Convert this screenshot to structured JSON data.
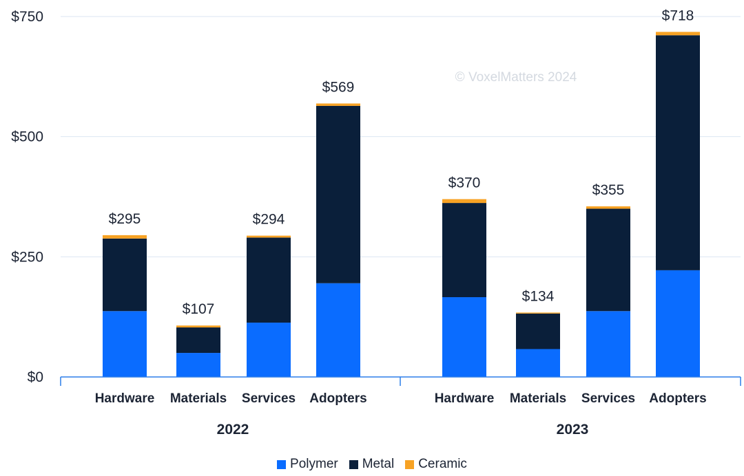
{
  "chart_data": {
    "type": "bar",
    "stacked": true,
    "groups": [
      {
        "label": "2022",
        "categories": [
          "Hardware",
          "Materials",
          "Services",
          "Adopters"
        ],
        "totals": [
          "$295",
          "$107",
          "$294",
          "$569"
        ]
      },
      {
        "label": "2023",
        "categories": [
          "Hardware",
          "Materials",
          "Services",
          "Adopters"
        ],
        "totals": [
          "$370",
          "$134",
          "$355",
          "$718"
        ]
      }
    ],
    "series": [
      {
        "name": "Polymer",
        "color": "#0a6cff",
        "values": [
          [
            137,
            50,
            113,
            195
          ],
          [
            166,
            58,
            137,
            222
          ]
        ]
      },
      {
        "name": "Metal",
        "color": "#0a1f3a",
        "values": [
          [
            151,
            53,
            177,
            369
          ],
          [
            196,
            74,
            213,
            489
          ]
        ]
      },
      {
        "name": "Ceramic",
        "color": "#f7a224",
        "values": [
          [
            7,
            4,
            4,
            5
          ],
          [
            8,
            2,
            5,
            7
          ]
        ]
      }
    ],
    "y_ticks": [
      "$0",
      "$250",
      "$500",
      "$750"
    ],
    "y_tick_values": [
      0,
      250,
      500,
      750
    ],
    "ylim": [
      0,
      750
    ],
    "grid": true,
    "legend_position": "bottom",
    "watermark": "© VoxelMatters 2024"
  }
}
